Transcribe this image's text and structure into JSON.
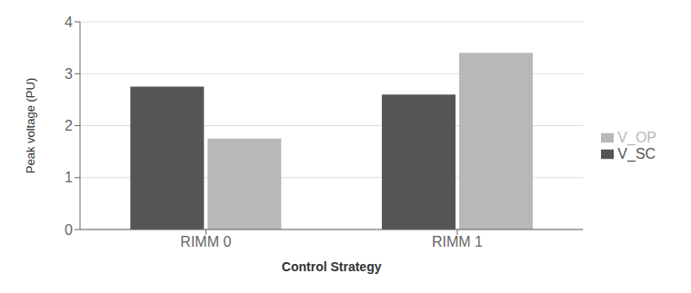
{
  "chart_data": {
    "type": "bar",
    "categories": [
      "RIMM 0",
      "RIMM 1"
    ],
    "series": [
      {
        "name": "V_SC",
        "color": "#555555",
        "values": [
          2.75,
          2.6
        ]
      },
      {
        "name": "V_OP",
        "color": "#b8b8b8",
        "values": [
          1.75,
          3.4
        ]
      }
    ],
    "xlabel": "Control Strategy",
    "ylabel": "Peak voltage (PU)",
    "ylim": [
      0,
      4
    ],
    "yticks": [
      0,
      1,
      2,
      3,
      4
    ],
    "grid": true,
    "legend": "right"
  }
}
